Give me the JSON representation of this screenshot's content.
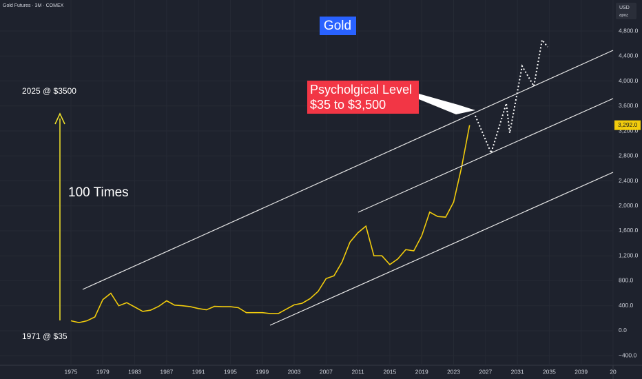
{
  "header": {
    "symbol": "Gold Futures · 3M · COMEX",
    "currency": "USD",
    "author": "apoz"
  },
  "chart_data": {
    "type": "line",
    "title": "Gold",
    "color": "#f2cc0c",
    "x": [
      1975,
      1976,
      1977,
      1978,
      1979,
      1980,
      1981,
      1982,
      1983,
      1984,
      1985,
      1986,
      1987,
      1988,
      1989,
      1990,
      1991,
      1992,
      1993,
      1994,
      1995,
      1996,
      1997,
      1998,
      1999,
      2000,
      2001,
      2002,
      2003,
      2004,
      2005,
      2006,
      2007,
      2008,
      2009,
      2010,
      2011,
      2012,
      2013,
      2014,
      2015,
      2016,
      2017,
      2018,
      2019,
      2020,
      2021,
      2022,
      2023,
      2024,
      2025
    ],
    "values": [
      160,
      130,
      160,
      220,
      500,
      600,
      400,
      450,
      380,
      310,
      330,
      390,
      480,
      410,
      400,
      385,
      355,
      335,
      390,
      385,
      385,
      370,
      290,
      290,
      290,
      275,
      275,
      345,
      415,
      440,
      515,
      630,
      835,
      880,
      1100,
      1420,
      1570,
      1675,
      1200,
      1200,
      1060,
      1150,
      1300,
      1280,
      1520,
      1900,
      1830,
      1820,
      2060,
      2620,
      3292
    ],
    "xlim": [
      1966.1,
      2043
    ],
    "xticks": [
      1975,
      1979,
      1983,
      1987,
      1991,
      1995,
      1999,
      2003,
      2007,
      2011,
      2015,
      2019,
      2023,
      2027,
      2031,
      2035,
      2039,
      {
        "value": 2043,
        "label": "20"
      }
    ],
    "ylim": [
      -552,
      5297
    ],
    "yticks": [
      {
        "value": -400,
        "label": "−400.0"
      },
      {
        "value": 0,
        "label": "0.0"
      },
      {
        "value": 400,
        "label": "400.0"
      },
      {
        "value": 800,
        "label": "800.0"
      },
      {
        "value": 1200,
        "label": "1,200.0"
      },
      {
        "value": 1600,
        "label": "1,600.0"
      },
      {
        "value": 2000,
        "label": "2,000.0"
      },
      {
        "value": 2400,
        "label": "2,400.0"
      },
      {
        "value": 2800,
        "label": "2,800.0"
      },
      {
        "value": 3200,
        "label": "3,200.0"
      },
      {
        "value": 3600,
        "label": "3,600.0"
      },
      {
        "value": 4000,
        "label": "4,000.0"
      },
      {
        "value": 4400,
        "label": "4,400.0"
      },
      {
        "value": 4800,
        "label": "4,800.0"
      }
    ],
    "last_price": {
      "value": 3292,
      "label": "3,292.0"
    },
    "annotations": {
      "top": "2025 @ $3500",
      "middle": "100 Times",
      "bottom": "1971 @ $35",
      "callout_line1": "Psycholgical Level",
      "callout_line2": "$35 to $3,500"
    }
  }
}
